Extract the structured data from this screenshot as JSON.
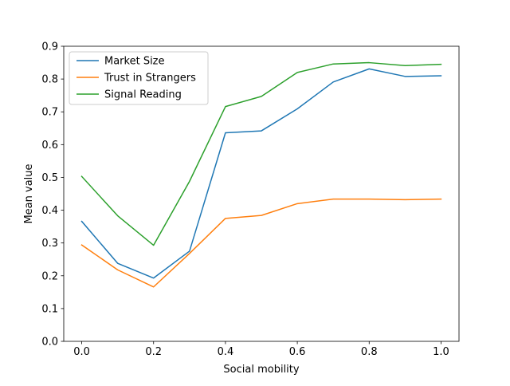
{
  "chart_data": {
    "type": "line",
    "title": "",
    "xlabel": "Social mobility",
    "ylabel": "Mean value",
    "xlim": [
      -0.05,
      1.05
    ],
    "ylim": [
      0.0,
      0.9
    ],
    "xticks": [
      "0.0",
      "0.2",
      "0.4",
      "0.6",
      "0.8",
      "1.0"
    ],
    "yticks": [
      "0.0",
      "0.1",
      "0.2",
      "0.3",
      "0.4",
      "0.5",
      "0.6",
      "0.7",
      "0.8",
      "0.9"
    ],
    "grid": false,
    "legend_position": "upper-left",
    "x": [
      0.0,
      0.1,
      0.2,
      0.3,
      0.4,
      0.5,
      0.6,
      0.7,
      0.8,
      0.9,
      1.0
    ],
    "series": [
      {
        "name": "Market Size",
        "color": "#1f77b4",
        "values": [
          0.366,
          0.238,
          0.193,
          0.275,
          0.636,
          0.642,
          0.709,
          0.791,
          0.831,
          0.808,
          0.81
        ]
      },
      {
        "name": "Trust in Strangers",
        "color": "#ff7f0e",
        "values": [
          0.294,
          0.218,
          0.166,
          0.268,
          0.375,
          0.384,
          0.42,
          0.434,
          0.434,
          0.432,
          0.434
        ]
      },
      {
        "name": "Signal Reading",
        "color": "#2ca02c",
        "values": [
          0.503,
          0.383,
          0.293,
          0.488,
          0.716,
          0.747,
          0.82,
          0.846,
          0.85,
          0.841,
          0.845
        ]
      }
    ]
  }
}
